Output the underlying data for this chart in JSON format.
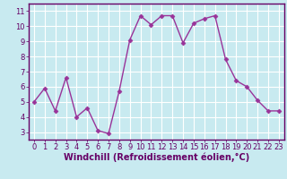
{
  "x": [
    0,
    1,
    2,
    3,
    4,
    5,
    6,
    7,
    8,
    9,
    10,
    11,
    12,
    13,
    14,
    15,
    16,
    17,
    18,
    19,
    20,
    21,
    22,
    23
  ],
  "y": [
    5.0,
    5.9,
    4.4,
    6.6,
    4.0,
    4.6,
    3.1,
    2.9,
    5.7,
    9.1,
    10.7,
    10.1,
    10.7,
    10.7,
    8.9,
    10.2,
    10.5,
    10.7,
    7.8,
    6.4,
    6.0,
    5.1,
    4.4,
    4.4
  ],
  "line_color": "#993399",
  "marker": "D",
  "marker_size": 2.5,
  "linewidth": 1.0,
  "xlabel": "Windchill (Refroidissement éolien,°C)",
  "xlabel_fontsize": 7.0,
  "xlim": [
    -0.5,
    23.5
  ],
  "ylim": [
    2.5,
    11.5
  ],
  "yticks": [
    3,
    4,
    5,
    6,
    7,
    8,
    9,
    10,
    11
  ],
  "xticks": [
    0,
    1,
    2,
    3,
    4,
    5,
    6,
    7,
    8,
    9,
    10,
    11,
    12,
    13,
    14,
    15,
    16,
    17,
    18,
    19,
    20,
    21,
    22,
    23
  ],
  "tick_fontsize": 6.0,
  "bg_color": "#c8eaf0",
  "grid_color": "#ffffff",
  "axes_color": "#660066",
  "spine_color": "#660066"
}
